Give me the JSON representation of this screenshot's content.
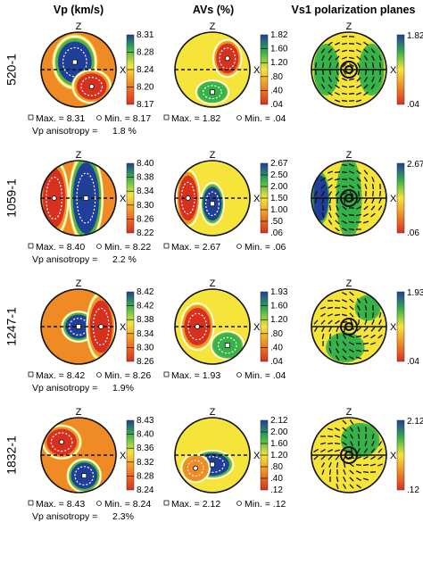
{
  "headers": [
    "Vp (km/s)",
    "AVs (%)",
    "Vs1 polarization planes"
  ],
  "axis": {
    "z": "Z",
    "x": "X"
  },
  "colors": {
    "red": "#d7301f",
    "orange": "#f08a24",
    "yellow": "#f6e43a",
    "green": "#35b34a",
    "blue": "#1f3f99"
  },
  "samples": [
    {
      "id": "520-1",
      "vp": {
        "scale": [
          "8.31",
          "8.28",
          "8.24",
          "8.20",
          "8.17"
        ],
        "max": "Max. = 8.31",
        "min": "Min. = 8.17",
        "anisotropy_label": "Vp anisotropy =",
        "anisotropy": "1.8 %"
      },
      "avs": {
        "scale": [
          "1.82",
          "1.60",
          "1.20",
          ".80",
          ".40",
          ".04"
        ],
        "max": "Max. = 1.82",
        "min": "Min. = .04"
      },
      "vs1": {
        "scale": [
          "1.82",
          ".04"
        ]
      }
    },
    {
      "id": "1059-1",
      "vp": {
        "scale": [
          "8.40",
          "8.38",
          "8.34",
          "8.30",
          "8.26",
          "8.22"
        ],
        "max": "Max. = 8.40",
        "min": "Min. = 8.22",
        "anisotropy_label": "Vp anisotropy =",
        "anisotropy": "2.2 %"
      },
      "avs": {
        "scale": [
          "2.67",
          "2.50",
          "2.00",
          "1.50",
          "1.00",
          ".50",
          ".06"
        ],
        "max": "Max. = 2.67",
        "min": "Min. = .06"
      },
      "vs1": {
        "scale": [
          "2.67",
          ".06"
        ]
      }
    },
    {
      "id": "1247-1",
      "vp": {
        "scale": [
          "8.42",
          "8.42",
          "8.38",
          "8.34",
          "8.30",
          "8.26"
        ],
        "max": "Max. = 8.42",
        "min": "Min. = 8.26",
        "anisotropy_label": "Vp anisotropy =",
        "anisotropy": "1.9%"
      },
      "avs": {
        "scale": [
          "1.93",
          "1.60",
          "1.20",
          ".80",
          ".40",
          ".04"
        ],
        "max": "Max. = 1.93",
        "min": "Min. = .04"
      },
      "vs1": {
        "scale": [
          "1.93",
          ".04"
        ]
      }
    },
    {
      "id": "1832-1",
      "vp": {
        "scale": [
          "8.43",
          "8.40",
          "8.36",
          "8.32",
          "8.28",
          "8.24"
        ],
        "max": "Max. = 8.43",
        "min": "Min. = 8.24",
        "anisotropy_label": "Vp anisotropy =",
        "anisotropy": "2.3%"
      },
      "avs": {
        "scale": [
          "2.12",
          "2.00",
          "1.60",
          "1.20",
          ".80",
          ".40",
          ".12"
        ],
        "max": "Max. = 2.12",
        "min": "Min. = .12"
      },
      "vs1": {
        "scale": [
          "2.12",
          ".12"
        ]
      }
    }
  ]
}
